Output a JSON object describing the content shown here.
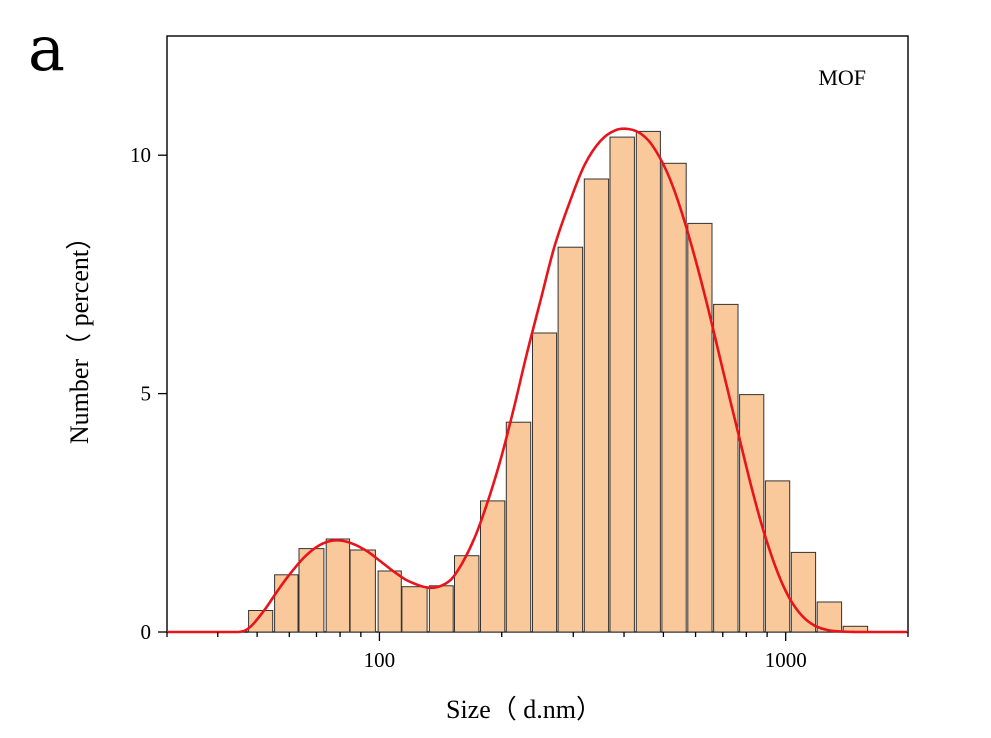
{
  "panel_label": "a",
  "chart_data": {
    "type": "bar",
    "title": "",
    "annotation": "MOF",
    "xlabel": "Size（ d.nm）",
    "ylabel": "Number（ percent）",
    "x_scale": "log",
    "xlim": [
      30,
      2000
    ],
    "ylim": [
      0,
      12.5
    ],
    "x_ticks": [
      100,
      1000
    ],
    "x_tick_labels": [
      "100",
      "1000"
    ],
    "y_ticks": [
      0,
      5,
      10
    ],
    "y_tick_labels": [
      "0",
      "5",
      "10"
    ],
    "grid": false,
    "legend": "none",
    "bar_fill_color": "#f9c89b",
    "bar_edge_color": "#333333",
    "curve_color": "#e8141c",
    "bins": [
      {
        "size": 51,
        "value": 0.45
      },
      {
        "size": 59,
        "value": 1.2
      },
      {
        "size": 68,
        "value": 1.75
      },
      {
        "size": 79,
        "value": 1.95
      },
      {
        "size": 91,
        "value": 1.72
      },
      {
        "size": 106,
        "value": 1.28
      },
      {
        "size": 122,
        "value": 0.95
      },
      {
        "size": 142,
        "value": 0.97
      },
      {
        "size": 164,
        "value": 1.6
      },
      {
        "size": 190,
        "value": 2.75
      },
      {
        "size": 220,
        "value": 4.4
      },
      {
        "size": 255,
        "value": 6.27
      },
      {
        "size": 295,
        "value": 8.07
      },
      {
        "size": 342,
        "value": 9.5
      },
      {
        "size": 396,
        "value": 10.38
      },
      {
        "size": 459,
        "value": 10.5
      },
      {
        "size": 531,
        "value": 9.83
      },
      {
        "size": 615,
        "value": 8.57
      },
      {
        "size": 712,
        "value": 6.87
      },
      {
        "size": 825,
        "value": 4.98
      },
      {
        "size": 955,
        "value": 3.17
      },
      {
        "size": 1106,
        "value": 1.67
      },
      {
        "size": 1281,
        "value": 0.63
      },
      {
        "size": 1484,
        "value": 0.12
      }
    ],
    "fit_curve": {
      "x": [
        30,
        40,
        45,
        48,
        52,
        56,
        60,
        65,
        70,
        75,
        80,
        86,
        93,
        100,
        108,
        116,
        125,
        132,
        140,
        150,
        160,
        172,
        185,
        200,
        215,
        230,
        250,
        270,
        295,
        320,
        350,
        380,
        410,
        440,
        470,
        510,
        550,
        600,
        650,
        700,
        760,
        820,
        880,
        950,
        1020,
        1100,
        1180,
        1270,
        1370,
        1480,
        1580,
        1700,
        2000
      ],
      "y": [
        0,
        0,
        0,
        0.1,
        0.45,
        0.85,
        1.2,
        1.55,
        1.78,
        1.9,
        1.92,
        1.85,
        1.7,
        1.5,
        1.28,
        1.1,
        0.98,
        0.93,
        0.95,
        1.1,
        1.45,
        2.0,
        2.75,
        3.7,
        4.75,
        5.8,
        7.0,
        8.1,
        9.05,
        9.8,
        10.3,
        10.52,
        10.55,
        10.45,
        10.2,
        9.65,
        8.9,
        7.8,
        6.65,
        5.5,
        4.25,
        3.1,
        2.15,
        1.3,
        0.72,
        0.33,
        0.13,
        0.04,
        0.01,
        0,
        0,
        0,
        0
      ]
    }
  }
}
